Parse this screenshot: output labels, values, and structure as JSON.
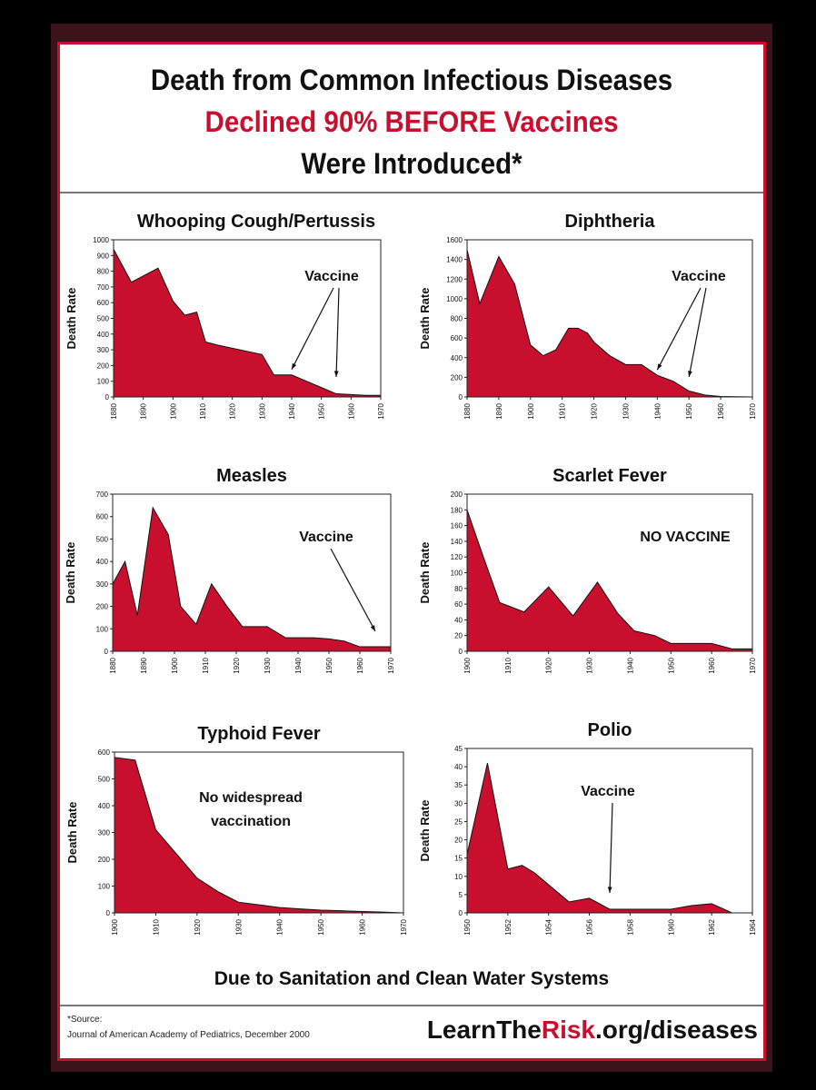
{
  "headline": {
    "line1": "Death from Common Infectious Diseases",
    "line2": "Declined 90% BEFORE Vaccines",
    "line3": "Were Introduced*"
  },
  "colors": {
    "fill": "#c8102e",
    "stroke": "#111111",
    "accent": "#c8102e"
  },
  "chart_data": [
    {
      "type": "area",
      "title": "Whooping Cough/Pertussis",
      "ylabel": "Death Rate",
      "xlabel": "",
      "xlim": [
        1880,
        1970
      ],
      "ylim": [
        0,
        1000
      ],
      "xticks": [
        1880,
        1890,
        1900,
        1910,
        1920,
        1930,
        1940,
        1950,
        1960,
        1970
      ],
      "yticks": [
        0,
        100,
        200,
        300,
        400,
        500,
        600,
        700,
        800,
        900,
        1000
      ],
      "x": [
        1880,
        1886,
        1895,
        1900,
        1904,
        1908,
        1911,
        1915,
        1930,
        1934,
        1940,
        1945,
        1950,
        1955,
        1960,
        1965,
        1970
      ],
      "values": [
        940,
        730,
        820,
        610,
        520,
        540,
        350,
        330,
        270,
        140,
        140,
        100,
        60,
        20,
        15,
        10,
        10
      ],
      "annotation": "Vaccine",
      "annotation_type": "arrow",
      "arrow_targets": [
        1940,
        1955
      ]
    },
    {
      "type": "area",
      "title": "Diphtheria",
      "ylabel": "Death Rate",
      "xlabel": "",
      "xlim": [
        1880,
        1970
      ],
      "ylim": [
        0,
        1600
      ],
      "xticks": [
        1880,
        1890,
        1900,
        1910,
        1920,
        1930,
        1940,
        1950,
        1960,
        1970
      ],
      "yticks": [
        0,
        200,
        400,
        600,
        800,
        1000,
        1200,
        1400,
        1600
      ],
      "x": [
        1880,
        1884,
        1890,
        1895,
        1900,
        1904,
        1908,
        1912,
        1915,
        1918,
        1920,
        1925,
        1930,
        1935,
        1940,
        1945,
        1950,
        1955,
        1960,
        1970
      ],
      "values": [
        1500,
        950,
        1430,
        1150,
        530,
        420,
        480,
        700,
        700,
        650,
        560,
        420,
        330,
        330,
        220,
        160,
        60,
        20,
        5,
        0
      ],
      "annotation": "Vaccine",
      "annotation_type": "arrow",
      "arrow_targets": [
        1940,
        1950
      ]
    },
    {
      "type": "area",
      "title": "Measles",
      "ylabel": "Death Rate",
      "xlabel": "",
      "xlim": [
        1880,
        1970
      ],
      "ylim": [
        0,
        700
      ],
      "xticks": [
        1880,
        1890,
        1900,
        1910,
        1920,
        1930,
        1940,
        1950,
        1960,
        1970
      ],
      "yticks": [
        0,
        100,
        200,
        300,
        400,
        500,
        600,
        700
      ],
      "x": [
        1880,
        1884,
        1888,
        1893,
        1898,
        1902,
        1907,
        1912,
        1917,
        1922,
        1930,
        1936,
        1945,
        1950,
        1955,
        1960,
        1970
      ],
      "values": [
        300,
        400,
        160,
        640,
        520,
        200,
        120,
        300,
        200,
        110,
        110,
        60,
        60,
        55,
        45,
        20,
        20
      ],
      "annotation": "Vaccine",
      "annotation_type": "arrow",
      "arrow_targets": [
        1965
      ]
    },
    {
      "type": "area",
      "title": "Scarlet Fever",
      "ylabel": "Death Rate",
      "xlabel": "",
      "xlim": [
        1900,
        1970
      ],
      "ylim": [
        0,
        200
      ],
      "xticks": [
        1900,
        1910,
        1920,
        1930,
        1940,
        1950,
        1960,
        1970
      ],
      "yticks": [
        0,
        20,
        40,
        60,
        80,
        100,
        120,
        140,
        160,
        180,
        200
      ],
      "x": [
        1900,
        1904,
        1908,
        1914,
        1920,
        1926,
        1932,
        1937,
        1941,
        1946,
        1950,
        1955,
        1960,
        1965,
        1970
      ],
      "values": [
        180,
        120,
        62,
        50,
        82,
        45,
        88,
        48,
        26,
        20,
        10,
        10,
        10,
        3,
        3
      ],
      "annotation": "NO VACCINE",
      "annotation_type": "text"
    },
    {
      "type": "area",
      "title": "Typhoid Fever",
      "ylabel": "Death Rate",
      "xlabel": "",
      "xlim": [
        1900,
        1970
      ],
      "ylim": [
        0,
        600
      ],
      "xticks": [
        1900,
        1910,
        1920,
        1930,
        1940,
        1950,
        1960,
        1970
      ],
      "yticks": [
        0,
        100,
        200,
        300,
        400,
        500,
        600
      ],
      "x": [
        1900,
        1905,
        1910,
        1915,
        1920,
        1925,
        1930,
        1935,
        1940,
        1945,
        1950,
        1955,
        1960,
        1965,
        1970
      ],
      "values": [
        580,
        570,
        310,
        220,
        130,
        80,
        40,
        30,
        20,
        15,
        10,
        8,
        5,
        3,
        0
      ],
      "annotation": "No widespread vaccination",
      "annotation_type": "text"
    },
    {
      "type": "area",
      "title": "Polio",
      "ylabel": "Death Rate",
      "xlabel": "",
      "xlim": [
        1950,
        1964
      ],
      "ylim": [
        0,
        45
      ],
      "xticks": [
        1950,
        1952,
        1954,
        1956,
        1958,
        1960,
        1962,
        1964
      ],
      "yticks": [
        0,
        5,
        10,
        15,
        20,
        25,
        30,
        35,
        40,
        45
      ],
      "x": [
        1950,
        1951,
        1952,
        1952.7,
        1953.3,
        1955,
        1956,
        1957,
        1958,
        1960,
        1961,
        1962,
        1963,
        1964
      ],
      "values": [
        16,
        41,
        12,
        13,
        11,
        3,
        4,
        1,
        1,
        1,
        2,
        2.5,
        0,
        0
      ],
      "annotation": "Vaccine",
      "annotation_type": "arrow",
      "arrow_targets": [
        1957
      ]
    }
  ],
  "footer": {
    "main": "Due to Sanitation and Clean Water Systems",
    "source_label": "*Source:",
    "source_text": "Journal of American Academy of Pediatrics, December 2000",
    "site_prefix": "LearnThe",
    "site_highlight": "Risk",
    "site_suffix": ".org/diseases"
  }
}
